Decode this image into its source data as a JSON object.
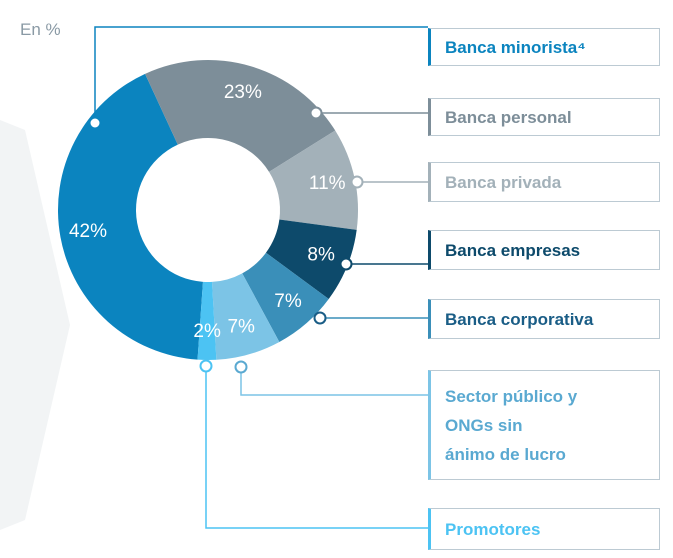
{
  "chart_data": {
    "type": "donut",
    "unit_label": "En %",
    "categories": [
      "Banca minorista⁴",
      "Banca personal",
      "Banca privada",
      "Banca empresas",
      "Banca corporativa",
      "Sector público y\nONGs sin\nánimo de lucro",
      "Promotores"
    ],
    "values": [
      42,
      23,
      11,
      8,
      7,
      7,
      2
    ],
    "value_labels": [
      "42%",
      "23%",
      "11%",
      "8%",
      "7%",
      "7%",
      "2%"
    ],
    "colors": [
      "#0b84bf",
      "#7d8e99",
      "#a3b1b9",
      "#0d4a6b",
      "#3a8fb9",
      "#7cc4e6",
      "#4cc3f3"
    ],
    "text_colors": [
      "#0b84bf",
      "#7d8e99",
      "#a3b1b9",
      "#0d4a6b",
      "#1a5d86",
      "#5aa9d1",
      "#4cc3f3"
    ]
  }
}
